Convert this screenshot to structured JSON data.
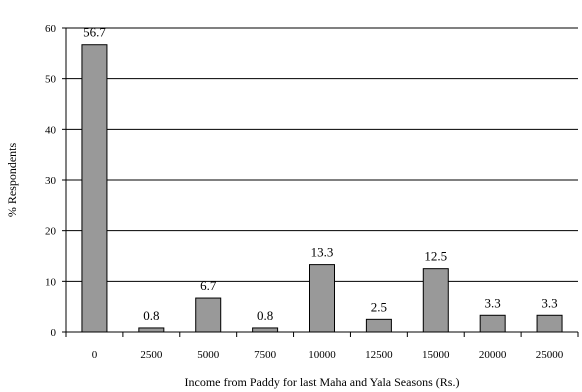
{
  "chart_data": {
    "type": "bar",
    "categories": [
      "0",
      "2500",
      "5000",
      "7500",
      "10000",
      "12500",
      "15000",
      "20000",
      "25000"
    ],
    "values": [
      56.7,
      0.8,
      6.7,
      0.8,
      13.3,
      2.5,
      12.5,
      3.3,
      3.3
    ],
    "data_labels": [
      "56.7",
      "0.8",
      "6.7",
      "0.8",
      "13.3",
      "2.5",
      "12.5",
      "3.3",
      "3.3"
    ],
    "title": "",
    "xlabel": "Income from Paddy for last Maha and Yala Seasons (Rs.)",
    "ylabel": "% Respondents",
    "ylim": [
      0,
      60
    ],
    "yticks": [
      "0",
      "10",
      "20",
      "30",
      "40",
      "50",
      "60"
    ],
    "grid": "horizontal",
    "legend": "none",
    "colors": {
      "bar_fill": "#999999",
      "bar_stroke": "#000000",
      "grid": "#000000",
      "axis": "#000000",
      "text": "#000000"
    }
  }
}
